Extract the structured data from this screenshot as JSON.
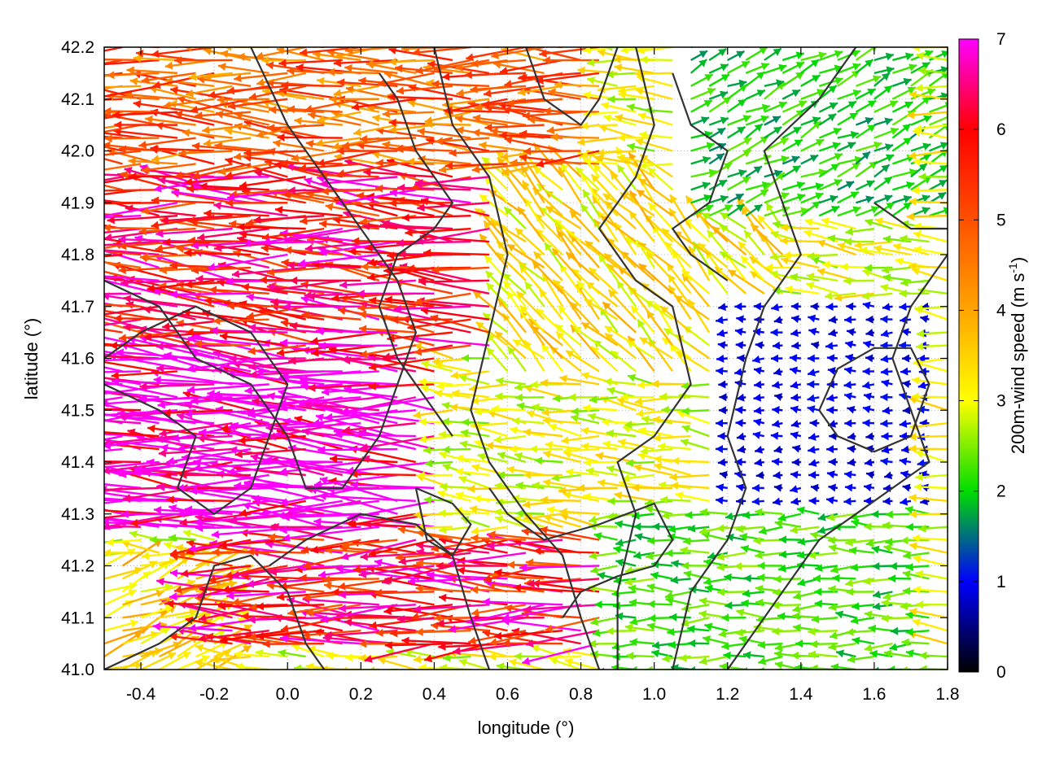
{
  "chart_data": {
    "type": "quiver",
    "xlabel": "longitude (°)",
    "ylabel": "latitude (°)",
    "colorbar_label": "200m-wind speed (m s^-1)",
    "colorbar_label_parts": {
      "main": "200m-wind speed (m s",
      "sup": "-1",
      "tail": ")"
    },
    "xlim": [
      -0.5,
      1.8
    ],
    "ylim": [
      41.0,
      42.2
    ],
    "clim": [
      0,
      7
    ],
    "x_ticks": [
      -0.4,
      -0.2,
      0.0,
      0.2,
      0.4,
      0.6,
      0.8,
      1.0,
      1.2,
      1.4,
      1.6,
      1.8
    ],
    "x_tick_labels": [
      "-0.4",
      "-0.2",
      "0.0",
      "0.2",
      "0.4",
      "0.6",
      "0.8",
      "1.0",
      "1.2",
      "1.4",
      "1.6",
      "1.8"
    ],
    "y_ticks": [
      41.0,
      41.1,
      41.2,
      41.3,
      41.4,
      41.5,
      41.6,
      41.7,
      41.8,
      41.9,
      42.0,
      42.1,
      42.2
    ],
    "y_tick_labels": [
      "41.0",
      "41.1",
      "41.2",
      "41.3",
      "41.4",
      "41.5",
      "41.6",
      "41.7",
      "41.8",
      "41.9",
      "42.0",
      "42.1",
      "42.2"
    ],
    "colorbar_ticks": [
      0,
      1,
      2,
      3,
      4,
      5,
      6,
      7
    ],
    "colorbar_tick_labels": [
      "0",
      "1",
      "2",
      "3",
      "4",
      "5",
      "6",
      "7"
    ],
    "colormap_stops": [
      {
        "value": 0,
        "color": "#000000"
      },
      {
        "value": 1,
        "color": "#0000ff"
      },
      {
        "value": 2,
        "color": "#00dd00"
      },
      {
        "value": 3,
        "color": "#ffff00"
      },
      {
        "value": 4,
        "color": "#ffa500"
      },
      {
        "value": 5,
        "color": "#ff5000"
      },
      {
        "value": 6,
        "color": "#ff0000"
      },
      {
        "value": 7,
        "color": "#ff00ff"
      }
    ],
    "grid": "dotted",
    "contour_color": "#333333",
    "vector_grid": {
      "lon_step": 0.05,
      "lat_step": 0.025
    },
    "wind_regions": [
      {
        "name": "north",
        "lon": [
          -0.5,
          0.9
        ],
        "lat": [
          41.95,
          42.2
        ],
        "u": -4.5,
        "v": 0.1,
        "speed": 4.8
      },
      {
        "name": "northwest-jet",
        "lon": [
          -0.5,
          0.6
        ],
        "lat": [
          41.6,
          41.95
        ],
        "u": -6.0,
        "v": 0.4,
        "speed": 6.0
      },
      {
        "name": "west-jet",
        "lon": [
          -0.5,
          0.4
        ],
        "lat": [
          41.25,
          41.6
        ],
        "u": -7.0,
        "v": 0.3,
        "speed": 7.2
      },
      {
        "name": "south-jet",
        "lon": [
          -0.2,
          0.9
        ],
        "lat": [
          41.05,
          41.25
        ],
        "u": -6.0,
        "v": 0.0,
        "speed": 6.0
      },
      {
        "name": "southwest-corner",
        "lon": [
          -0.5,
          -0.2
        ],
        "lat": [
          41.0,
          41.2
        ],
        "u": 2.5,
        "v": 1.0,
        "speed": 3.5
      },
      {
        "name": "center-converging",
        "lon": [
          0.6,
          1.4
        ],
        "lat": [
          41.55,
          41.95
        ],
        "u": -2.0,
        "v": 2.0,
        "speed": 3.3
      },
      {
        "name": "east-calm",
        "lon": [
          1.2,
          1.8
        ],
        "lat": [
          41.3,
          41.7
        ],
        "u": -1.0,
        "v": 0.0,
        "speed": 0.9
      },
      {
        "name": "southeast",
        "lon": [
          0.9,
          1.8
        ],
        "lat": [
          41.0,
          41.3
        ],
        "u": -2.0,
        "v": 0.0,
        "speed": 2.2
      },
      {
        "name": "northeast",
        "lon": [
          1.1,
          1.8
        ],
        "lat": [
          41.85,
          42.2
        ],
        "u": 1.2,
        "v": 0.6,
        "speed": 2.0
      }
    ],
    "contours": [
      [
        [
          -0.05,
          41.2
        ],
        [
          0.05,
          41.25
        ],
        [
          0.2,
          41.3
        ],
        [
          0.35,
          41.28
        ],
        [
          0.45,
          41.22
        ],
        [
          0.5,
          41.1
        ],
        [
          0.55,
          41.0
        ]
      ],
      [
        [
          0.4,
          42.2
        ],
        [
          0.45,
          42.05
        ],
        [
          0.55,
          41.95
        ],
        [
          0.6,
          41.8
        ],
        [
          0.55,
          41.65
        ],
        [
          0.5,
          41.5
        ],
        [
          0.55,
          41.4
        ],
        [
          0.65,
          41.3
        ],
        [
          0.75,
          41.22
        ],
        [
          0.8,
          41.1
        ],
        [
          0.85,
          41.0
        ]
      ],
      [
        [
          0.95,
          42.2
        ],
        [
          1.0,
          42.05
        ],
        [
          0.95,
          41.95
        ],
        [
          0.85,
          41.85
        ],
        [
          0.95,
          41.75
        ],
        [
          1.05,
          41.7
        ],
        [
          1.1,
          41.55
        ],
        [
          1.0,
          41.45
        ],
        [
          0.9,
          41.4
        ],
        [
          0.95,
          41.3
        ],
        [
          0.9,
          41.15
        ],
        [
          0.9,
          41.0
        ]
      ],
      [
        [
          1.55,
          42.2
        ],
        [
          1.45,
          42.1
        ],
        [
          1.3,
          42.0
        ],
        [
          1.35,
          41.9
        ],
        [
          1.4,
          41.8
        ],
        [
          1.3,
          41.7
        ],
        [
          1.25,
          41.6
        ],
        [
          1.2,
          41.45
        ],
        [
          1.25,
          41.35
        ],
        [
          1.2,
          41.25
        ],
        [
          1.1,
          41.15
        ],
        [
          1.05,
          41.0
        ]
      ],
      [
        [
          1.8,
          41.8
        ],
        [
          1.7,
          41.7
        ],
        [
          1.65,
          41.6
        ],
        [
          1.7,
          41.5
        ],
        [
          1.75,
          41.4
        ],
        [
          1.65,
          41.35
        ],
        [
          1.55,
          41.3
        ],
        [
          1.45,
          41.25
        ],
        [
          1.35,
          41.15
        ],
        [
          1.25,
          41.05
        ],
        [
          1.2,
          41.0
        ]
      ],
      [
        [
          -0.5,
          41.75
        ],
        [
          -0.35,
          41.7
        ],
        [
          -0.25,
          41.6
        ],
        [
          -0.1,
          41.55
        ],
        [
          0.0,
          41.45
        ],
        [
          0.05,
          41.35
        ],
        [
          0.15,
          41.35
        ],
        [
          0.25,
          41.45
        ],
        [
          0.3,
          41.55
        ],
        [
          0.35,
          41.65
        ],
        [
          0.3,
          41.75
        ],
        [
          0.2,
          41.85
        ],
        [
          0.1,
          41.95
        ],
        [
          0.0,
          42.05
        ],
        [
          -0.1,
          42.2
        ]
      ],
      [
        [
          -0.5,
          41.55
        ],
        [
          -0.35,
          41.5
        ],
        [
          -0.25,
          41.45
        ],
        [
          -0.3,
          41.35
        ],
        [
          -0.2,
          41.3
        ],
        [
          -0.1,
          41.35
        ],
        [
          -0.05,
          41.45
        ],
        [
          0.0,
          41.55
        ],
        [
          -0.1,
          41.65
        ],
        [
          -0.25,
          41.7
        ],
        [
          -0.4,
          41.65
        ],
        [
          -0.5,
          41.6
        ]
      ],
      [
        [
          0.25,
          42.15
        ],
        [
          0.3,
          42.1
        ],
        [
          0.35,
          42.0
        ],
        [
          0.45,
          41.9
        ],
        [
          0.4,
          41.85
        ],
        [
          0.3,
          41.8
        ],
        [
          0.25,
          41.7
        ],
        [
          0.3,
          41.6
        ],
        [
          0.4,
          41.5
        ],
        [
          0.45,
          41.45
        ]
      ],
      [
        [
          0.65,
          42.2
        ],
        [
          0.7,
          42.1
        ],
        [
          0.8,
          42.05
        ],
        [
          0.85,
          42.1
        ],
        [
          0.9,
          42.2
        ]
      ],
      [
        [
          1.05,
          42.15
        ],
        [
          1.1,
          42.05
        ],
        [
          1.2,
          42.0
        ],
        [
          1.15,
          41.9
        ],
        [
          1.05,
          41.85
        ],
        [
          1.1,
          41.8
        ],
        [
          1.2,
          41.75
        ]
      ],
      [
        [
          0.55,
          41.35
        ],
        [
          0.6,
          41.3
        ],
        [
          0.7,
          41.25
        ],
        [
          0.85,
          41.28
        ],
        [
          1.0,
          41.32
        ],
        [
          1.05,
          41.25
        ],
        [
          1.0,
          41.2
        ],
        [
          0.9,
          41.18
        ],
        [
          0.8,
          41.15
        ],
        [
          0.75,
          41.1
        ]
      ],
      [
        [
          1.45,
          41.5
        ],
        [
          1.5,
          41.45
        ],
        [
          1.6,
          41.42
        ],
        [
          1.7,
          41.45
        ],
        [
          1.75,
          41.55
        ],
        [
          1.7,
          41.62
        ],
        [
          1.6,
          41.62
        ],
        [
          1.5,
          41.58
        ],
        [
          1.45,
          41.5
        ]
      ],
      [
        [
          1.6,
          41.9
        ],
        [
          1.7,
          41.85
        ],
        [
          1.8,
          41.85
        ]
      ],
      [
        [
          -0.5,
          41.0
        ],
        [
          -0.35,
          41.05
        ],
        [
          -0.25,
          41.1
        ],
        [
          -0.2,
          41.2
        ],
        [
          -0.1,
          41.22
        ],
        [
          0.0,
          41.15
        ],
        [
          0.05,
          41.05
        ],
        [
          0.1,
          41.0
        ]
      ],
      [
        [
          0.35,
          41.35
        ],
        [
          0.45,
          41.32
        ],
        [
          0.5,
          41.28
        ],
        [
          0.45,
          41.22
        ],
        [
          0.38,
          41.25
        ],
        [
          0.35,
          41.35
        ]
      ]
    ]
  }
}
